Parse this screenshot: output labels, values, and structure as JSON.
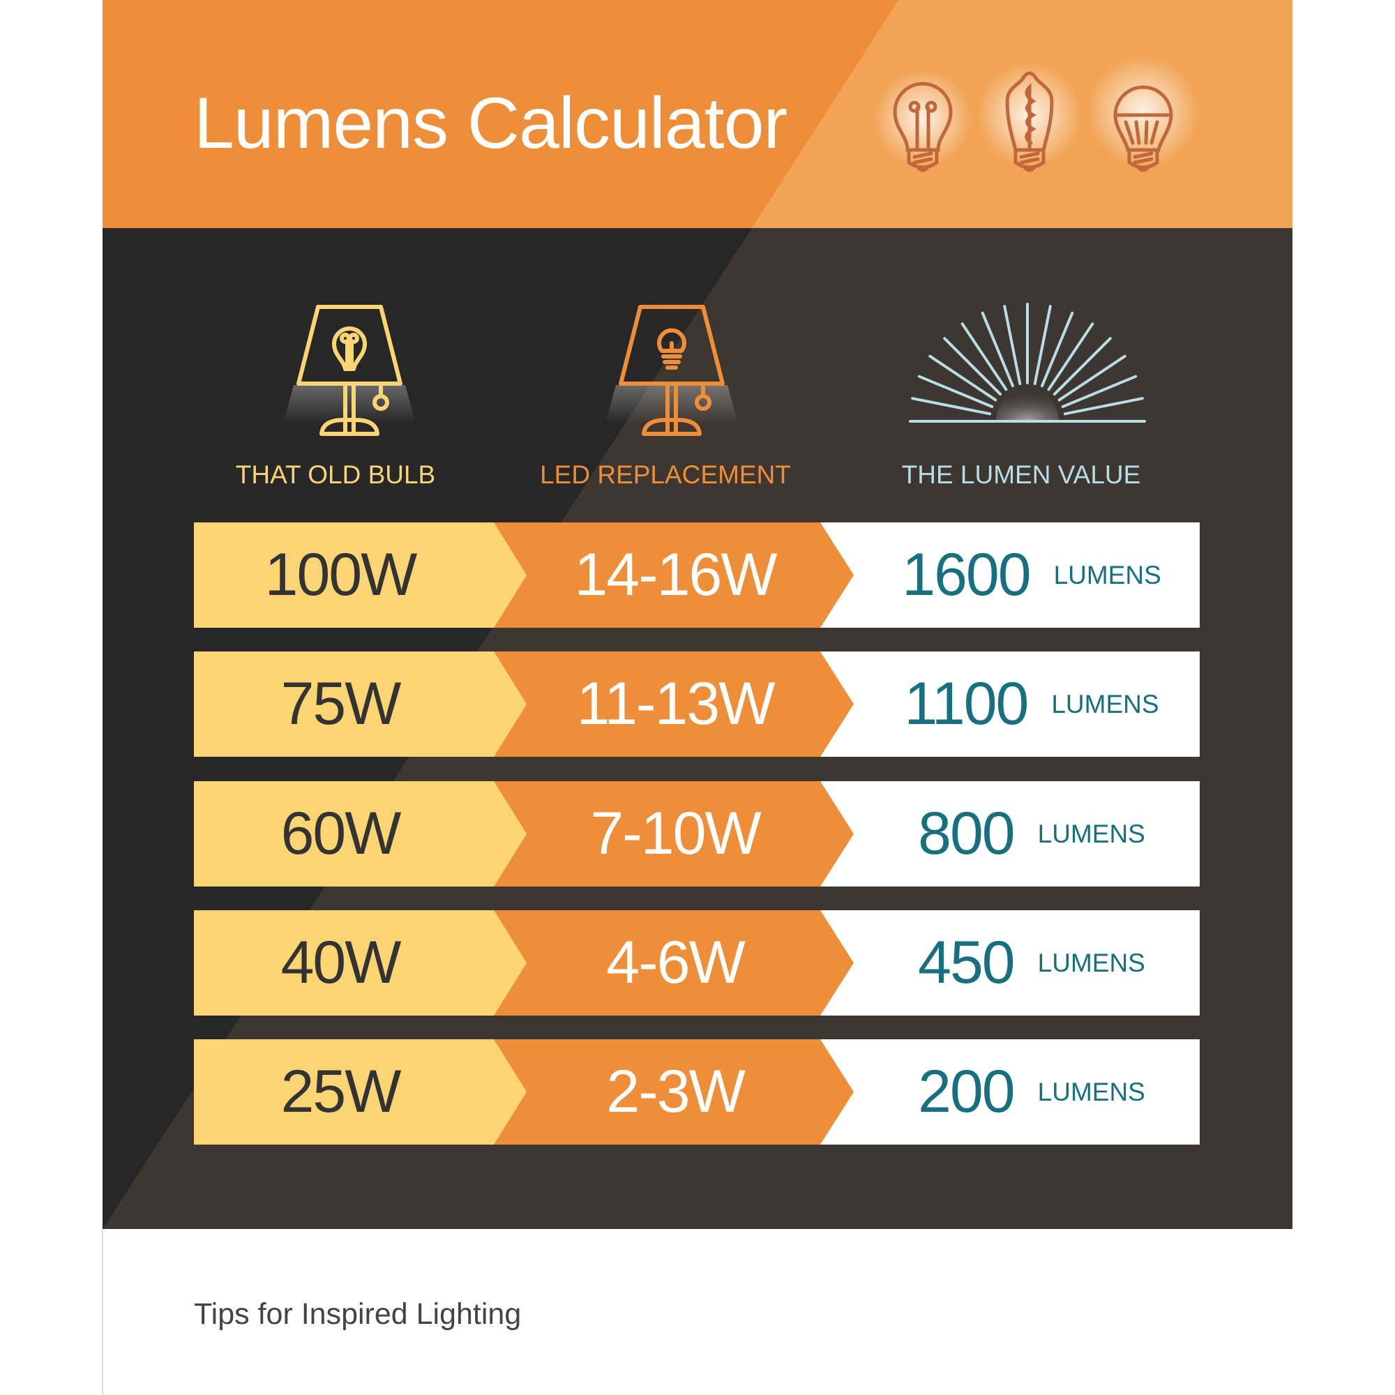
{
  "title": "Lumens Calculator",
  "header_icons": [
    "incandescent-bulb-icon",
    "filament-bulb-icon",
    "led-bulb-icon"
  ],
  "columns": [
    {
      "label": "THAT OLD BULB",
      "icon": "lamp-old-bulb-icon",
      "color": "#fbd574"
    },
    {
      "label": "LED REPLACEMENT",
      "icon": "lamp-led-icon",
      "color": "#ef8e38"
    },
    {
      "label": "THE LUMEN VALUE",
      "icon": "sunburst-icon",
      "color": "#b7dde6"
    }
  ],
  "rows": [
    {
      "old": "100W",
      "led": "14-16W",
      "lumens": "1600",
      "unit": "LUMENS"
    },
    {
      "old": "75W",
      "led": "11-13W",
      "lumens": "1100",
      "unit": "LUMENS"
    },
    {
      "old": "60W",
      "led": "7-10W",
      "lumens": "800",
      "unit": "LUMENS"
    },
    {
      "old": "40W",
      "led": "4-6W",
      "lumens": "450",
      "unit": "LUMENS"
    },
    {
      "old": "25W",
      "led": "2-3W",
      "lumens": "200",
      "unit": "LUMENS"
    }
  ],
  "footer": "Tips for Inspired Lighting",
  "colors": {
    "orange": "#ef8e38",
    "orange_light": "#f2a456",
    "dark": "#272727",
    "dark_light": "#3e3631",
    "yellow": "#fbd574",
    "teal": "#17707f"
  }
}
